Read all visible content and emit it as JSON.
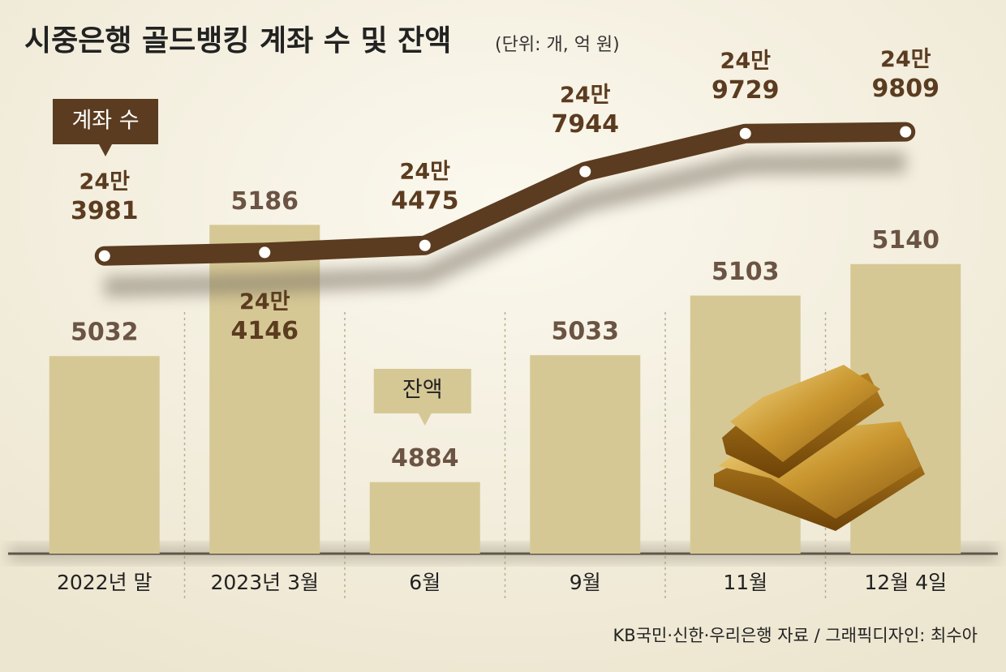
{
  "chart_data": {
    "type": "bar-line",
    "title": "시중은행 골드뱅킹 계좌 수 및 잔액",
    "subtitle": "(단위: 개, 억 원)",
    "source": "KB국민·신한·우리은행 자료 / 그래픽디자인: 최수아",
    "categories": [
      "2022년 말",
      "2023년 3월",
      "6월",
      "9월",
      "11월",
      "12월 4일"
    ],
    "ylim": [
      4800,
      5450
    ],
    "y2lim": [
      230000,
      256000
    ],
    "series": [
      {
        "name": "잔액",
        "type": "bar",
        "color": "#d6c895",
        "values": [
          5032,
          5186,
          4884,
          5033,
          5103,
          5140
        ]
      },
      {
        "name": "계좌 수",
        "type": "line",
        "axis": "y2",
        "color": "#5b3c20",
        "values": [
          243981,
          244146,
          244475,
          247944,
          249729,
          249809
        ],
        "value_labels": [
          [
            "24만",
            "3981"
          ],
          [
            "24만",
            "4146"
          ],
          [
            "24만",
            "4475"
          ],
          [
            "24만",
            "7944"
          ],
          [
            "24만",
            "9729"
          ],
          [
            "24만",
            "9809"
          ]
        ]
      }
    ]
  }
}
